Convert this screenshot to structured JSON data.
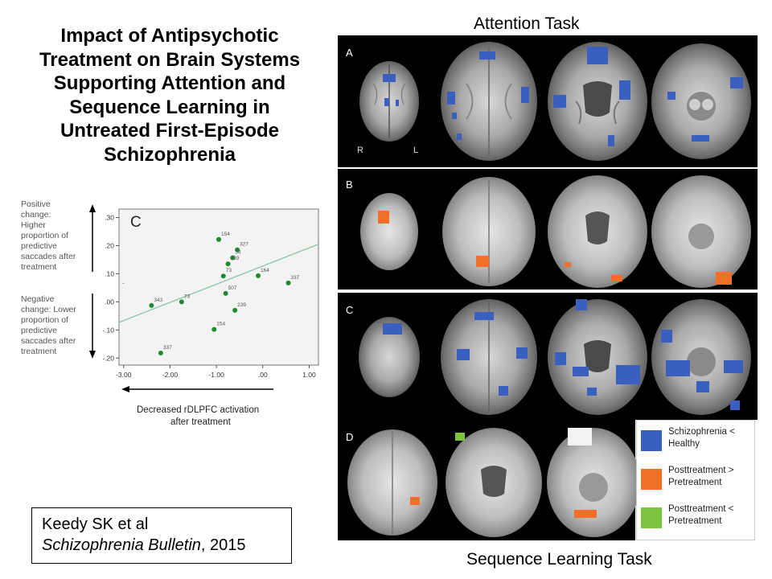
{
  "title_lines": [
    "Impact of Antipsychotic",
    "Treatment on Brain Systems",
    "Supporting Attention and",
    "Sequence Learning in",
    "Untreated First-Episode",
    "Schizophrenia"
  ],
  "attention_task_label": "Attention Task",
  "sequence_task_label": "Sequence Learning Task",
  "reference": {
    "authors": "Keedy SK et al",
    "journal": "Schizophrenia Bulletin",
    "year": ", 2015"
  },
  "panel_labels": [
    "A",
    "B",
    "C",
    "D"
  ],
  "orientation_labels": {
    "right": "R",
    "left": "L"
  },
  "legend": [
    {
      "label": "Schizophrenia < Healthy",
      "color": "#3a5fbf"
    },
    {
      "label": "Posttreatment > Pretreatment",
      "color": "#f07028"
    },
    {
      "label": "Posttreatment < Pretreatment",
      "color": "#7cc342"
    }
  ],
  "colors": {
    "point": "#1e8a2e",
    "fitline": "#8fc7a8",
    "bar": "#000000"
  },
  "chart_data": {
    "type": "scatter",
    "panel_label": "C",
    "xlabel": "Decreased rDLPFC activation after treatment",
    "ylabel_positive": "Positive change: Higher proportion of predictive saccades after treatment",
    "ylabel_negative": "Negative change: Lower proportion of predictive saccades after treatment",
    "xlim": [
      -3.1,
      1.2
    ],
    "ylim": [
      -0.225,
      0.33
    ],
    "x_ticks": [
      -3.0,
      -2.0,
      -1.0,
      0.0,
      1.0
    ],
    "x_tick_labels": [
      "-3.00",
      "-2.00",
      "-1.00",
      ".00",
      "1.00"
    ],
    "y_ticks": [
      -0.2,
      -0.1,
      0.0,
      0.1,
      0.2,
      0.3
    ],
    "y_tick_labels": [
      "-.20",
      "-.10",
      ".00",
      ".10",
      ".20",
      ".30"
    ],
    "points": [
      {
        "x": -0.95,
        "y": 0.222,
        "label": "154"
      },
      {
        "x": -0.55,
        "y": 0.185,
        "label": "327"
      },
      {
        "x": -0.65,
        "y": 0.157,
        "label": "34"
      },
      {
        "x": -0.75,
        "y": 0.135,
        "label": "239"
      },
      {
        "x": -0.85,
        "y": 0.092,
        "label": "73"
      },
      {
        "x": -0.1,
        "y": 0.093,
        "label": "164"
      },
      {
        "x": 0.55,
        "y": 0.067,
        "label": "337"
      },
      {
        "x": -0.8,
        "y": 0.03,
        "label": "507"
      },
      {
        "x": -1.75,
        "y": 0.0,
        "label": "73"
      },
      {
        "x": -2.4,
        "y": -0.013,
        "label": "343"
      },
      {
        "x": -0.6,
        "y": -0.03,
        "label": "239"
      },
      {
        "x": -1.05,
        "y": -0.098,
        "label": "154"
      },
      {
        "x": -2.2,
        "y": -0.182,
        "label": "337"
      }
    ],
    "fit_line": {
      "x": [
        -3.1,
        1.2
      ],
      "y": [
        -0.073,
        0.205
      ]
    }
  }
}
